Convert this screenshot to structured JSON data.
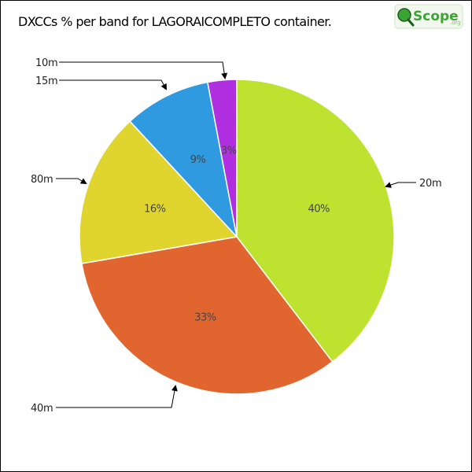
{
  "chart_data": {
    "type": "pie",
    "title": "DXCCs % per band for LAGORAICOMPLETO container.",
    "slices": [
      {
        "band": "20m",
        "percent": 40,
        "label": "40%",
        "color": "#bde22f"
      },
      {
        "band": "40m",
        "percent": 33,
        "label": "33%",
        "color": "#e0652f"
      },
      {
        "band": "80m",
        "percent": 16,
        "label": "16%",
        "color": "#e0d52f"
      },
      {
        "band": "15m",
        "percent": 9,
        "label": "9%",
        "color": "#2f9ae0"
      },
      {
        "band": "10m",
        "percent": 3,
        "label": "3%",
        "color": "#b02fe0"
      }
    ]
  },
  "logo": {
    "text": "Scope",
    "suffix": ".org",
    "color": "#3aa535"
  }
}
